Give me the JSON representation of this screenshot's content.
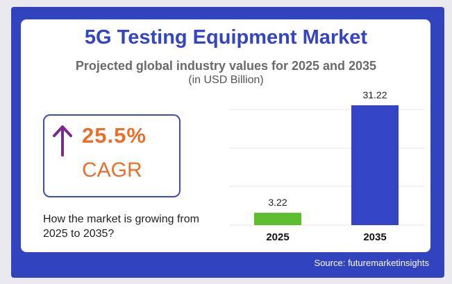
{
  "title": "5G Testing Equipment Market",
  "subtitle": "Projected global industry values for 2025 and 2035",
  "unit_note": "(in USD Billion)",
  "cagr": {
    "value": "25.5%",
    "label": "CAGR",
    "icon": "up-arrow-icon"
  },
  "question": "How the market is growing from 2025 to 2035?",
  "source": "Source: futuremarketinsights",
  "colors": {
    "frame": "#3243c0",
    "title": "#3344c4",
    "accent": "#e8702a",
    "arrow": "#7b2a8c",
    "bar_2025": "#5cbd2e",
    "bar_2035": "#3344c4"
  },
  "chart_data": {
    "type": "bar",
    "categories": [
      "2025",
      "2035"
    ],
    "values": [
      3.22,
      31.22
    ],
    "value_labels": [
      "3.22",
      "31.22"
    ],
    "title": "5G Testing Equipment Market",
    "subtitle": "Projected global industry values for 2025 and 2035",
    "ylabel": "",
    "ylim": [
      0,
      31.22
    ],
    "grid": true
  }
}
